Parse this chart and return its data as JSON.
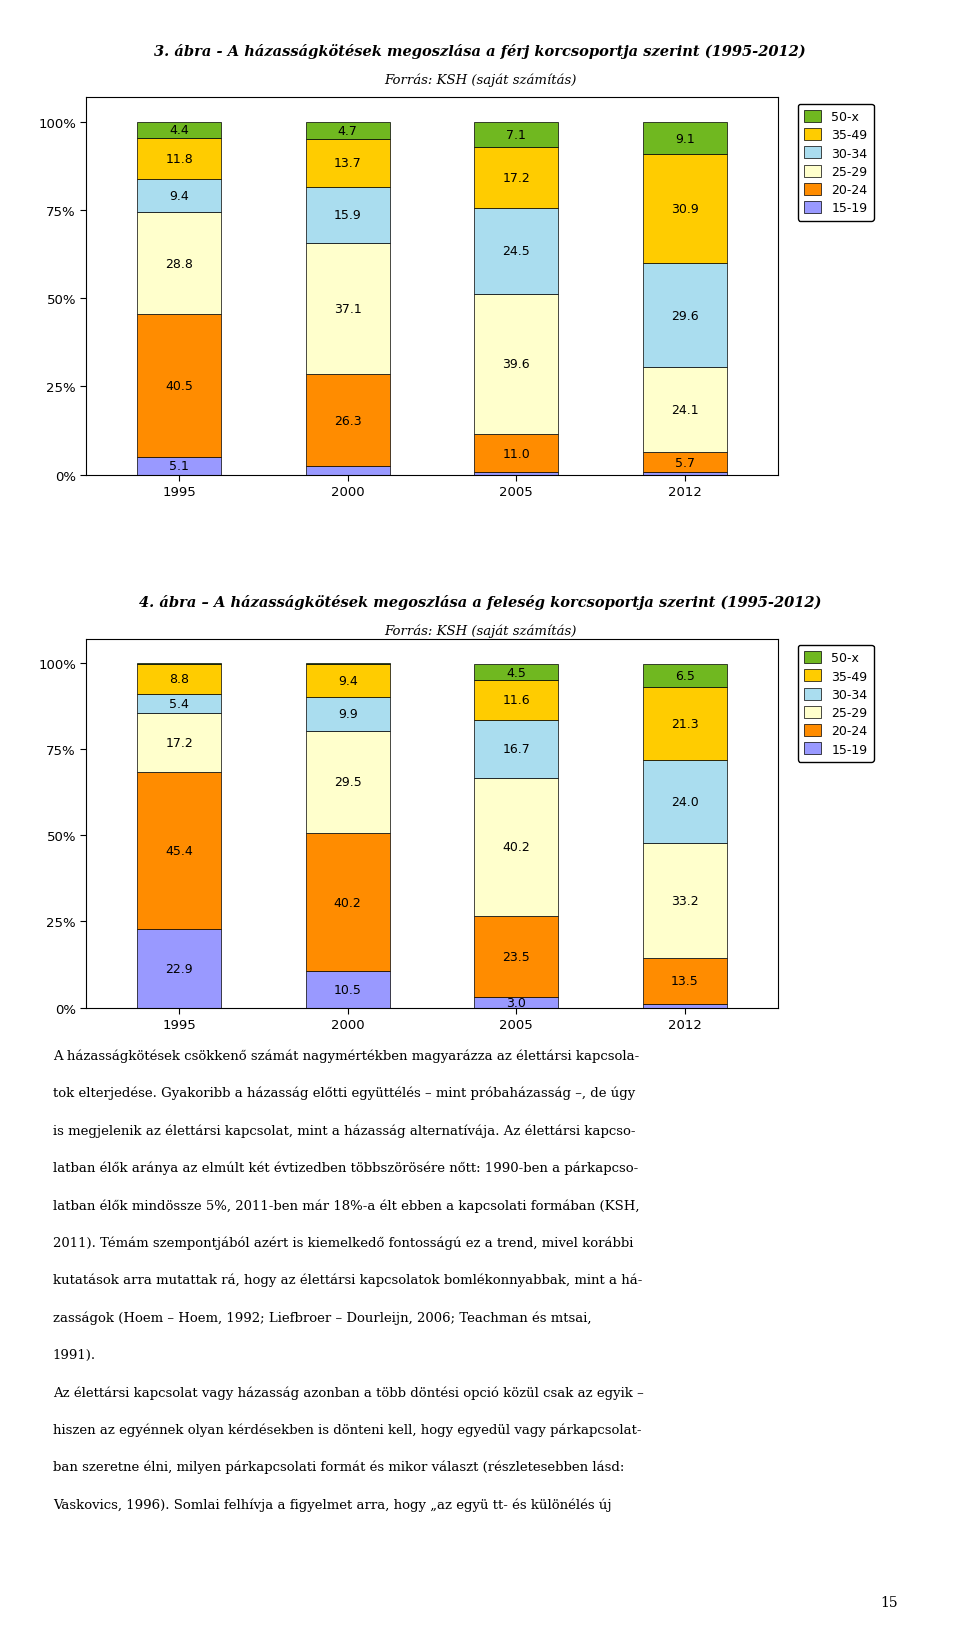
{
  "title1": "3. ábra - A házasságkötések megoszlása a férj korcsoportja szerint (1995-2012)",
  "subtitle1": "Forrás: KSH (saját számítás)",
  "title2": "4. ábra – A házasságkötések megoszlása a feleség korcsoportja szerint (1995-2012)",
  "subtitle2": "Forrás: KSH (saját számítás)",
  "years": [
    "1995",
    "2000",
    "2005",
    "2012"
  ],
  "categories": [
    "15-19",
    "20-24",
    "25-29",
    "30-34",
    "35-49",
    "50-x"
  ],
  "colors": [
    "#9999ff",
    "#ff8c00",
    "#ffffcc",
    "#aaddef",
    "#ffcc00",
    "#70b820"
  ],
  "chart1_data": {
    "15-19": [
      5.1,
      2.3,
      0.6,
      0.6
    ],
    "20-24": [
      40.5,
      26.3,
      11.0,
      5.7
    ],
    "25-29": [
      28.8,
      37.1,
      39.6,
      24.1
    ],
    "30-34": [
      9.4,
      15.9,
      24.5,
      29.6
    ],
    "35-49": [
      11.8,
      13.7,
      17.2,
      30.9
    ],
    "50-x": [
      4.4,
      4.7,
      7.1,
      9.1
    ]
  },
  "chart1_show_label": {
    "15-19": [
      false,
      false,
      false,
      false
    ],
    "20-24": [
      true,
      true,
      true,
      true
    ],
    "25-29": [
      true,
      true,
      true,
      true
    ],
    "30-34": [
      true,
      true,
      true,
      true
    ],
    "35-49": [
      true,
      true,
      true,
      true
    ],
    "50-x": [
      false,
      false,
      false,
      false
    ]
  },
  "chart2_data": {
    "15-19": [
      22.9,
      10.5,
      3.0,
      1.0
    ],
    "20-24": [
      45.4,
      40.2,
      23.5,
      13.5
    ],
    "25-29": [
      17.2,
      29.5,
      40.2,
      33.2
    ],
    "30-34": [
      5.4,
      9.9,
      16.7,
      24.0
    ],
    "35-49": [
      8.8,
      9.4,
      11.6,
      21.3
    ],
    "50-x": [
      0.3,
      0.4,
      4.5,
      6.5
    ]
  },
  "chart2_show_label": {
    "15-19": [
      false,
      false,
      false,
      false
    ],
    "20-24": [
      true,
      true,
      true,
      true
    ],
    "25-29": [
      true,
      true,
      true,
      true
    ],
    "30-34": [
      true,
      true,
      true,
      true
    ],
    "35-49": [
      true,
      true,
      true,
      true
    ],
    "50-x": [
      false,
      false,
      false,
      false
    ]
  },
  "text_lines": [
    "A házasságkötések csökkenő számát nagymértékben magyarázza az élettársi kapcsola-",
    "tok elterjedése. Gyakoribb a házasság előtti együttélés – mint próbaházasság –, de úgy",
    "is megjelenik az élettársi kapcsolat, mint a házasság alternatívája. Az élettársi kapcso-",
    "latban élők aránya az elmúlt két évtizedben többszörösére nőtt: 1990-ben a párkapcso-",
    "latban élők mindössze 5%, 2011-ben már 18%-a élt ebben a kapcsolati formában (KSH,",
    "2011). Témám szempontjából azért is kiemelkedő fontosságú ez a trend, mivel korábbi",
    "kutatások arra mutattak rá, hogy az élettársi kapcsolatok bomlékonnyabbak, mint a há-",
    "zasságok (Hoem – Hoem, 1992; Liefbroer – Dourleijn, 2006; Teachman és mtsai,",
    "1991).",
    "Az élettársi kapcsolat vagy házasság azonban a több döntési opció közül csak az egyik –",
    "hiszen az egyénnek olyan kérdésekben is dönteni kell, hogy egyedül vagy párkapcsolat-",
    "ban szeretne élni, milyen párkapcsolati formát és mikor választ (részletesebben lásd:",
    "Vaskovics, 1996). Somlai felhívja a figyelmet arra, hogy „az együ tt- és különélés új"
  ],
  "page_number": "15"
}
